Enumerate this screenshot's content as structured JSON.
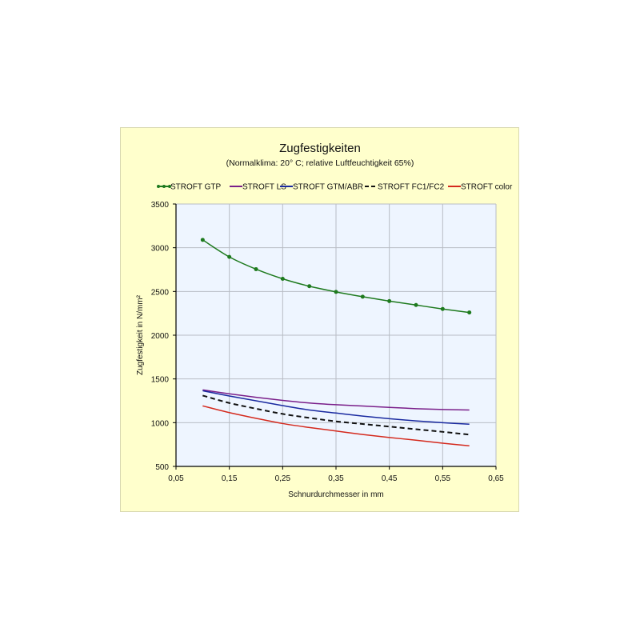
{
  "chart_data": {
    "type": "line",
    "title": "Zugfestigkeiten",
    "subtitle": "(Normalklima: 20° C;  relative Luftfeuchtigkeit 65%)",
    "xlabel": "Schnurdurchmesser in mm",
    "ylabel": "Zugfestigkeit in N/mm²",
    "xlim": [
      0.05,
      0.65
    ],
    "ylim": [
      500,
      3500
    ],
    "x_ticks": [
      "0,05",
      "0,15",
      "0,25",
      "0,35",
      "0,45",
      "0,55",
      "0,65"
    ],
    "y_ticks": [
      "500",
      "1000",
      "1500",
      "2000",
      "2500",
      "3000",
      "3500"
    ],
    "grid": true,
    "legend_position": "top",
    "x": [
      0.1,
      0.15,
      0.2,
      0.25,
      0.3,
      0.35,
      0.4,
      0.45,
      0.5,
      0.55,
      0.6
    ],
    "series": [
      {
        "name": "STROFT GTP",
        "color": "#1e7a1e",
        "style": "solid-markers",
        "values": [
          3090,
          2895,
          2755,
          2645,
          2560,
          2495,
          2440,
          2390,
          2345,
          2300,
          2260
        ]
      },
      {
        "name": "STROFT LS",
        "color": "#7a1f8a",
        "style": "solid",
        "values": [
          1375,
          1330,
          1290,
          1255,
          1225,
          1205,
          1190,
          1175,
          1160,
          1150,
          1145
        ]
      },
      {
        "name": "STROFT GTM/ABR",
        "color": "#1a2aa0",
        "style": "solid",
        "values": [
          1365,
          1305,
          1250,
          1195,
          1145,
          1110,
          1075,
          1045,
          1020,
          1000,
          982
        ]
      },
      {
        "name": "STROFT FC1/FC2",
        "color": "#111111",
        "style": "dashed",
        "values": [
          1310,
          1225,
          1160,
          1100,
          1055,
          1015,
          985,
          955,
          925,
          895,
          863
        ]
      },
      {
        "name": "STROFT color",
        "color": "#d42a1e",
        "style": "solid",
        "values": [
          1192,
          1115,
          1050,
          990,
          945,
          905,
          865,
          830,
          800,
          765,
          735
        ]
      }
    ]
  },
  "colors": {
    "frame_bg": "#ffffcc",
    "plot_bg": "#eef5ff",
    "grid": "#b8bcc4"
  }
}
